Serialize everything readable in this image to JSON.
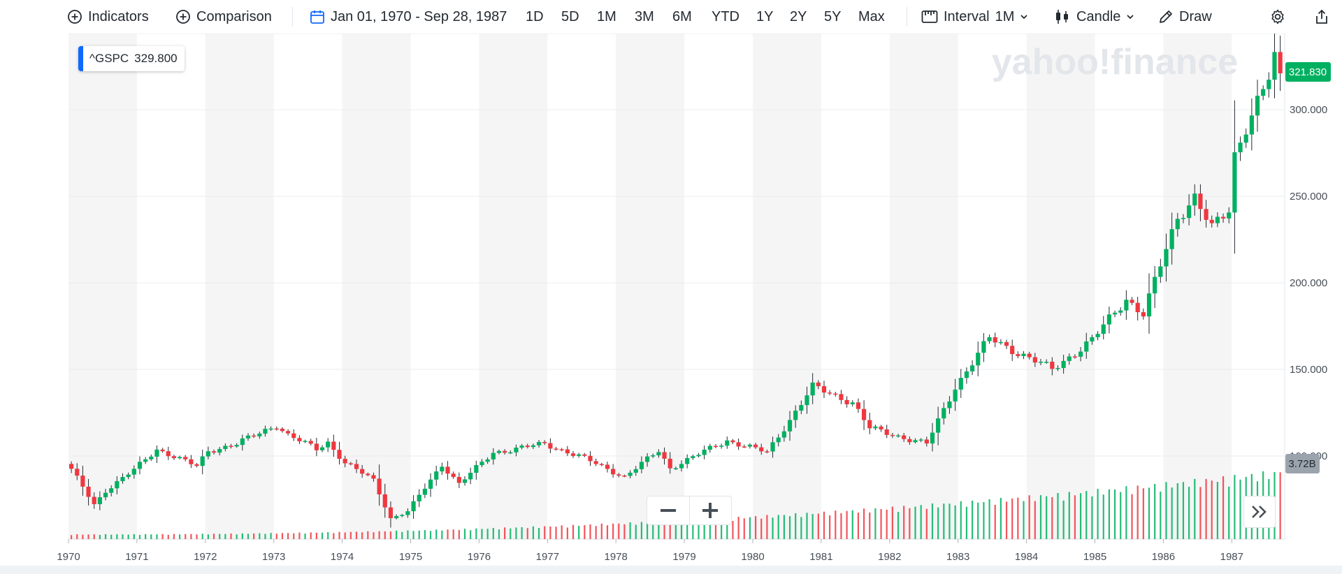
{
  "toolbar": {
    "indicators": "Indicators",
    "comparison": "Comparison",
    "date_range": "Jan 01, 1970 - Sep 28, 1987",
    "ranges": [
      "1D",
      "5D",
      "1M",
      "3M",
      "6M",
      "YTD",
      "1Y",
      "2Y",
      "5Y",
      "Max"
    ],
    "interval_label": "Interval",
    "interval_value": "1M",
    "chart_type": "Candle",
    "draw": "Draw"
  },
  "colors": {
    "up": "#00b061",
    "down": "#f0373f",
    "accent": "#0f69ff",
    "volume_badge": "#9ba4ad"
  },
  "watermark": "yahoo!finance",
  "ticker": {
    "symbol": "^GSPC",
    "value": "329.800"
  },
  "chart_data": {
    "type": "candlestick",
    "title": "",
    "ticker": "^GSPC",
    "interval": "1M",
    "x_range": [
      "1970-01",
      "1987-09"
    ],
    "ylim": [
      52,
      344
    ],
    "y_ticks": [
      "100.000",
      "150.000",
      "200.000",
      "250.000",
      "300.000"
    ],
    "x_ticks": [
      "1970",
      "1971",
      "1972",
      "1973",
      "1974",
      "1975",
      "1976",
      "1977",
      "1978",
      "1979",
      "1980",
      "1981",
      "1982",
      "1983",
      "1984",
      "1985",
      "1986",
      "1987"
    ],
    "last_price_label": "321.830",
    "volume_label": "3.72B",
    "volume_max": 3.72,
    "volume_unit": "B",
    "anchors": [
      [
        "1970-01",
        92
      ],
      [
        "1970-05",
        72
      ],
      [
        "1970-07",
        80
      ],
      [
        "1970-12",
        92
      ],
      [
        "1971-04",
        104
      ],
      [
        "1971-11",
        94
      ],
      [
        "1972-01",
        103
      ],
      [
        "1972-06",
        107
      ],
      [
        "1973-01",
        118
      ],
      [
        "1973-03",
        112
      ],
      [
        "1973-08",
        104
      ],
      [
        "1973-10",
        108
      ],
      [
        "1974-01",
        96
      ],
      [
        "1974-06",
        86
      ],
      [
        "1974-09",
        64
      ],
      [
        "1974-12",
        68
      ],
      [
        "1975-06",
        95
      ],
      [
        "1975-09",
        84
      ],
      [
        "1976-03",
        102
      ],
      [
        "1976-12",
        107
      ],
      [
        "1977-06",
        100
      ],
      [
        "1978-02",
        88
      ],
      [
        "1978-08",
        103
      ],
      [
        "1978-10",
        93
      ],
      [
        "1979-08",
        109
      ],
      [
        "1980-03",
        102
      ],
      [
        "1980-11",
        140
      ],
      [
        "1981-06",
        131
      ],
      [
        "1981-09",
        116
      ],
      [
        "1982-07",
        107
      ],
      [
        "1982-12",
        140
      ],
      [
        "1983-06",
        168
      ],
      [
        "1984-05",
        150
      ],
      [
        "1984-12",
        167
      ],
      [
        "1985-06",
        191
      ],
      [
        "1985-09",
        182
      ],
      [
        "1986-03",
        238
      ],
      [
        "1986-06",
        250
      ],
      [
        "1986-09",
        231
      ],
      [
        "1986-12",
        242
      ],
      [
        "1987-01",
        274
      ],
      [
        "1987-03",
        291
      ],
      [
        "1987-07",
        318
      ],
      [
        "1987-08",
        329
      ],
      [
        "1987-09",
        321
      ]
    ]
  }
}
